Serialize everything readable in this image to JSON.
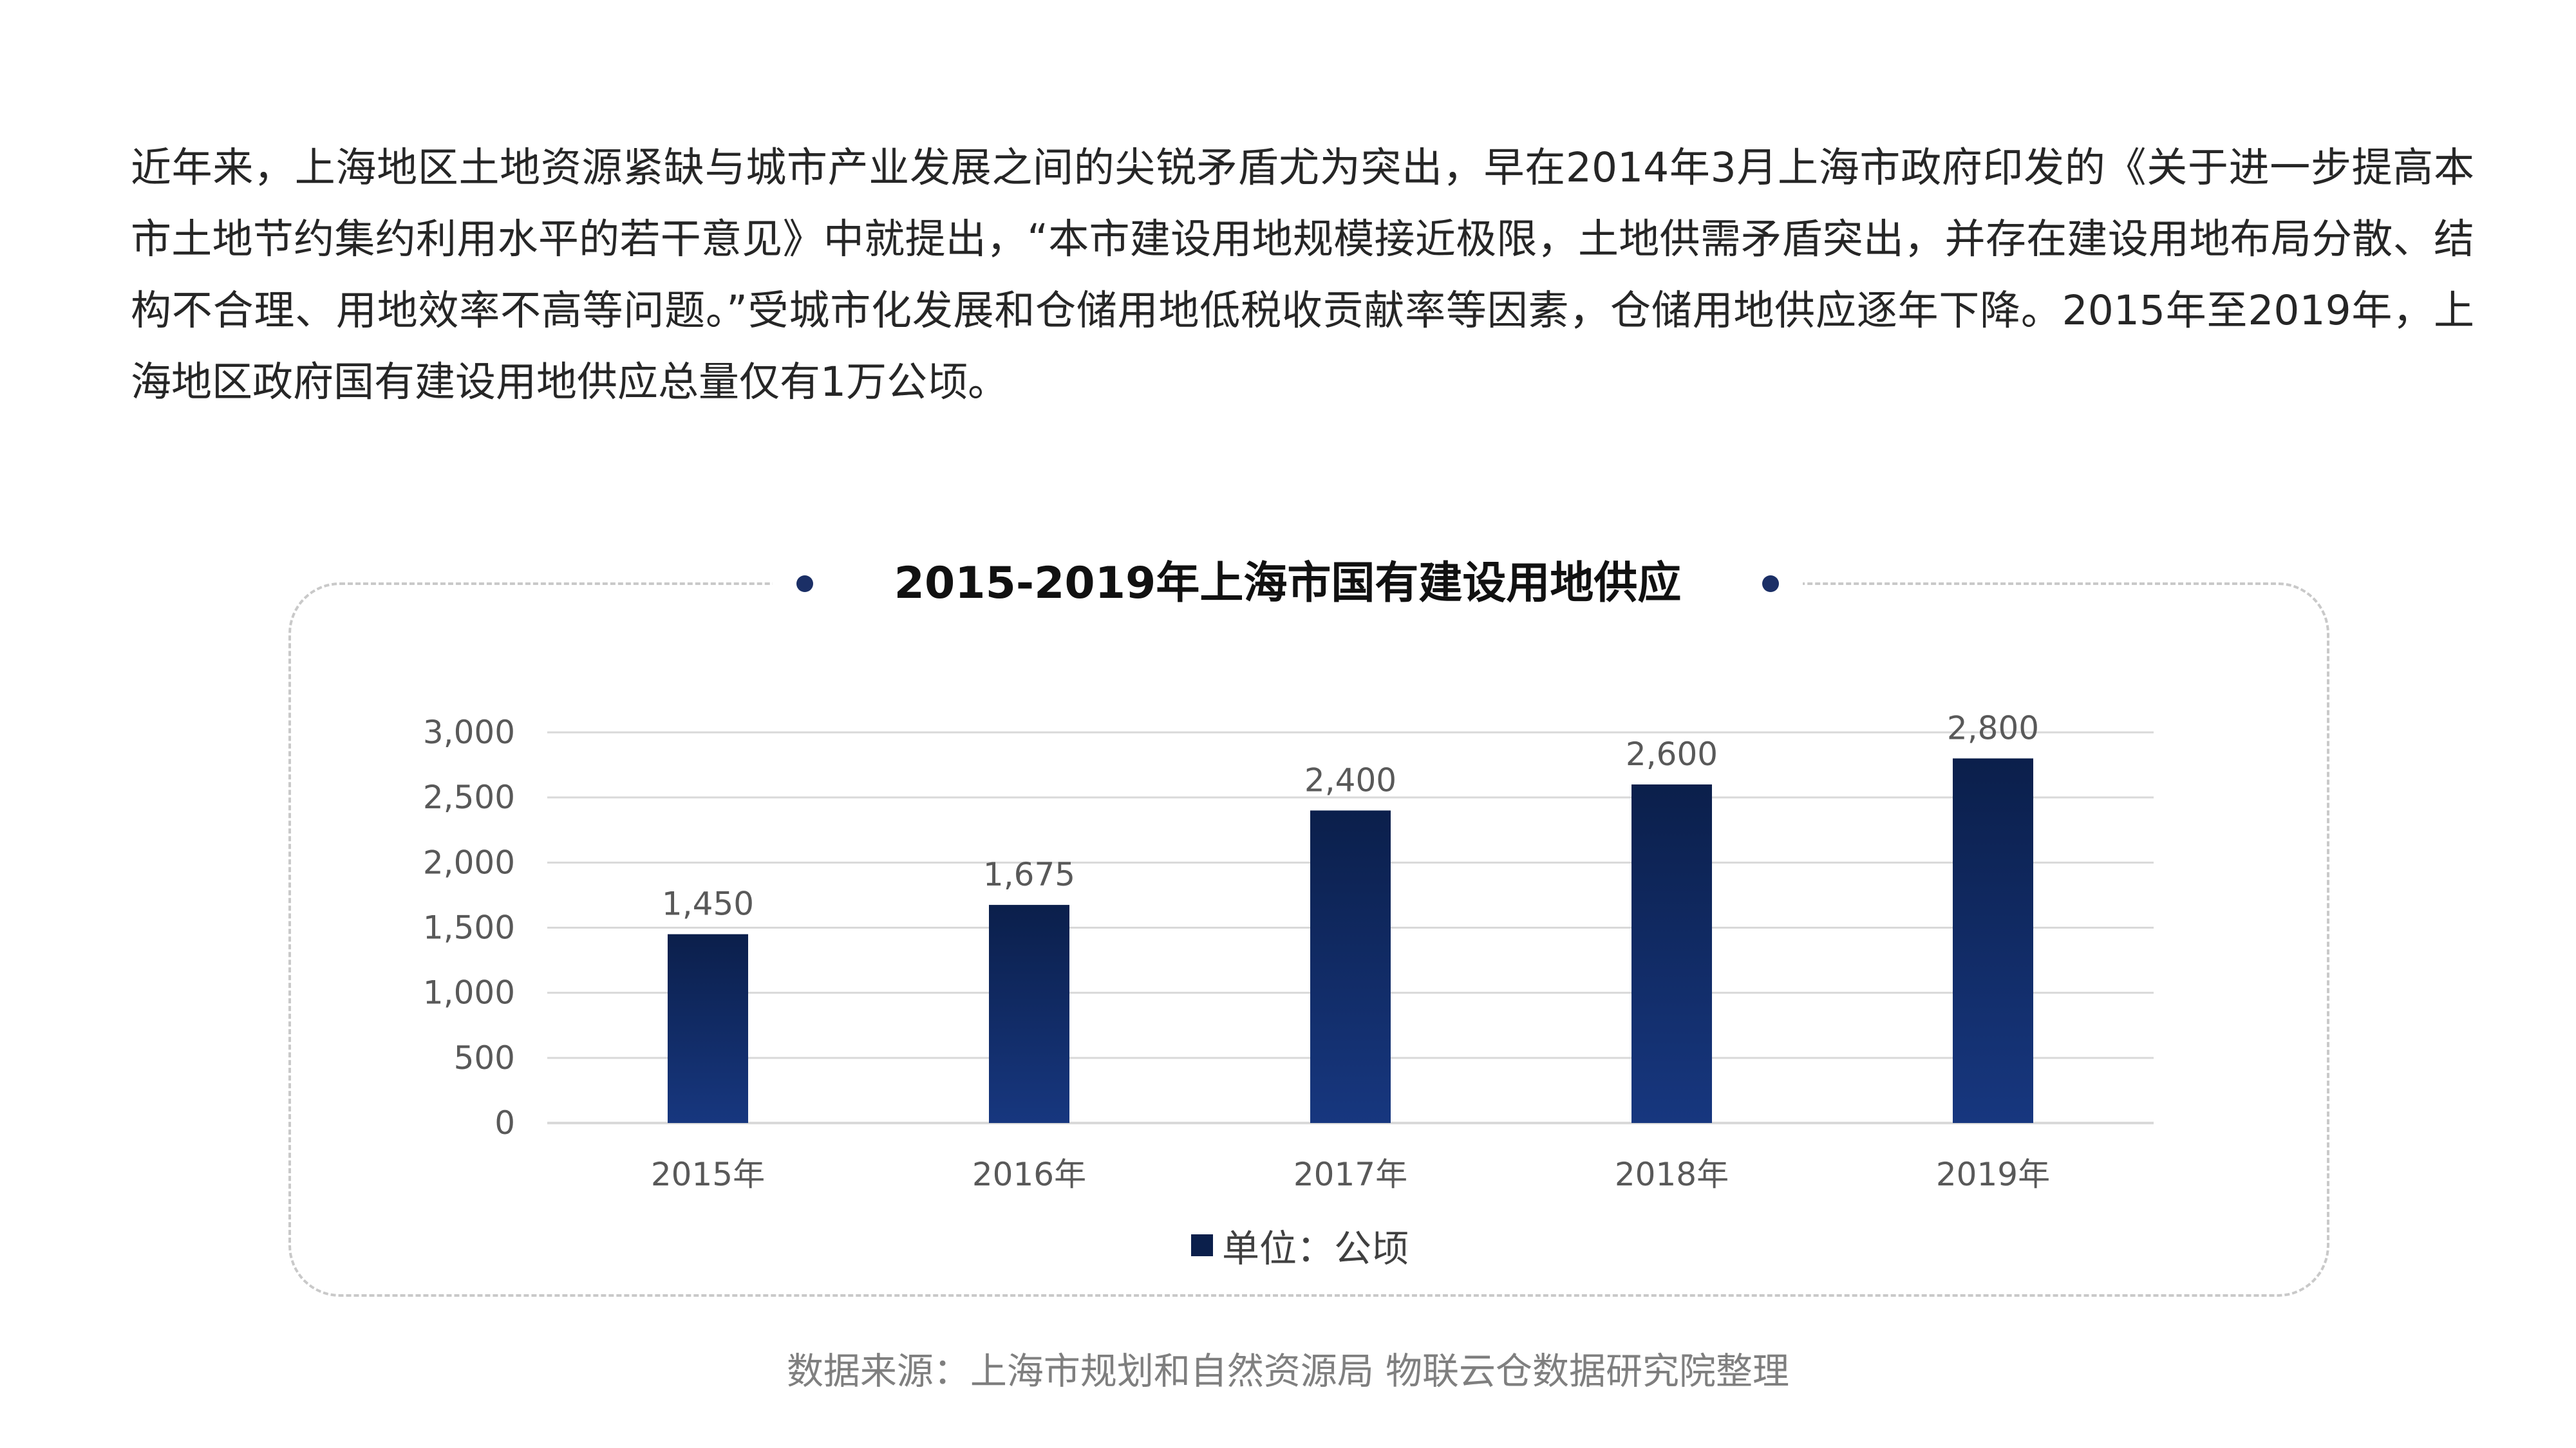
{
  "intro_text": "近年来，上海地区土地资源紧缺与城市产业发展之间的尖锐矛盾尤为突出，早在2014年3月上海市政府印发的《关于进一步提高本市土地节约集约利用水平的若干意见》中就提出，“本市建设用地规模接近极限，土地供需矛盾突出，并存在建设用地布局分散、结构不合理、用地效率不高等问题。”受城市化发展和仓储用地低税收贡献率等因素，仓储用地供应逐年下降。2015年至2019年，上海地区政府国有建设用地供应总量仅有1万公顷。",
  "colors": {
    "bar_top": "#0b1f4b",
    "bar_bottom": "#17377f",
    "dot": "#1b2f66",
    "grid": "#d9d9d9"
  },
  "chart_data": {
    "type": "bar",
    "title": "2015-2019年上海市国有建设用地供应",
    "categories": [
      "2015年",
      "2016年",
      "2017年",
      "2018年",
      "2019年"
    ],
    "series": [
      {
        "name": "单位：公顷",
        "values": [
          1450,
          1675,
          2400,
          2600,
          2800
        ],
        "labels": [
          "1,450",
          "1,675",
          "2,400",
          "2,600",
          "2,800"
        ]
      }
    ],
    "ylim": [
      0,
      3000
    ],
    "yticks": [
      0,
      500,
      1000,
      1500,
      2000,
      2500,
      3000
    ],
    "ytick_labels": [
      "0",
      "500",
      "1,000",
      "1,500",
      "2,000",
      "2,500",
      "3,000"
    ],
    "grid": true,
    "legend": "bottom"
  },
  "source": "数据来源：上海市规划和自然资源局 物联云仓数据研究院整理"
}
